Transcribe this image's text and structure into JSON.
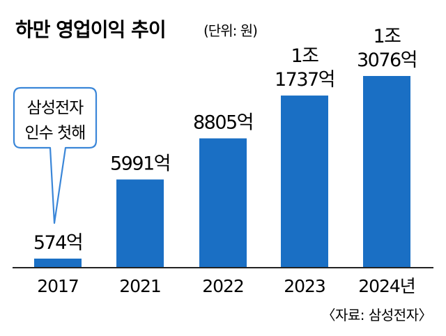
{
  "chart_data": {
    "type": "bar",
    "title": "하만 영업이익 추이",
    "unit_note": "(단위: 원)",
    "categories": [
      "2017",
      "2021",
      "2022",
      "2023",
      "2024년"
    ],
    "values": [
      574,
      5991,
      8805,
      11737,
      13076
    ],
    "value_labels": [
      [
        "574억"
      ],
      [
        "5991억"
      ],
      [
        "8805억"
      ],
      [
        "1조",
        "1737억"
      ],
      [
        "1조",
        "3076억"
      ]
    ],
    "ylim": [
      0,
      13076
    ],
    "bar_color": "#1a6fc4",
    "annotation": {
      "target_category": "2017",
      "lines": [
        "삼성전자",
        "인수 첫해"
      ],
      "border_color": "#3a86d8"
    },
    "source": "〈자료: 삼성전자〉",
    "grid": false,
    "legend": "none"
  }
}
